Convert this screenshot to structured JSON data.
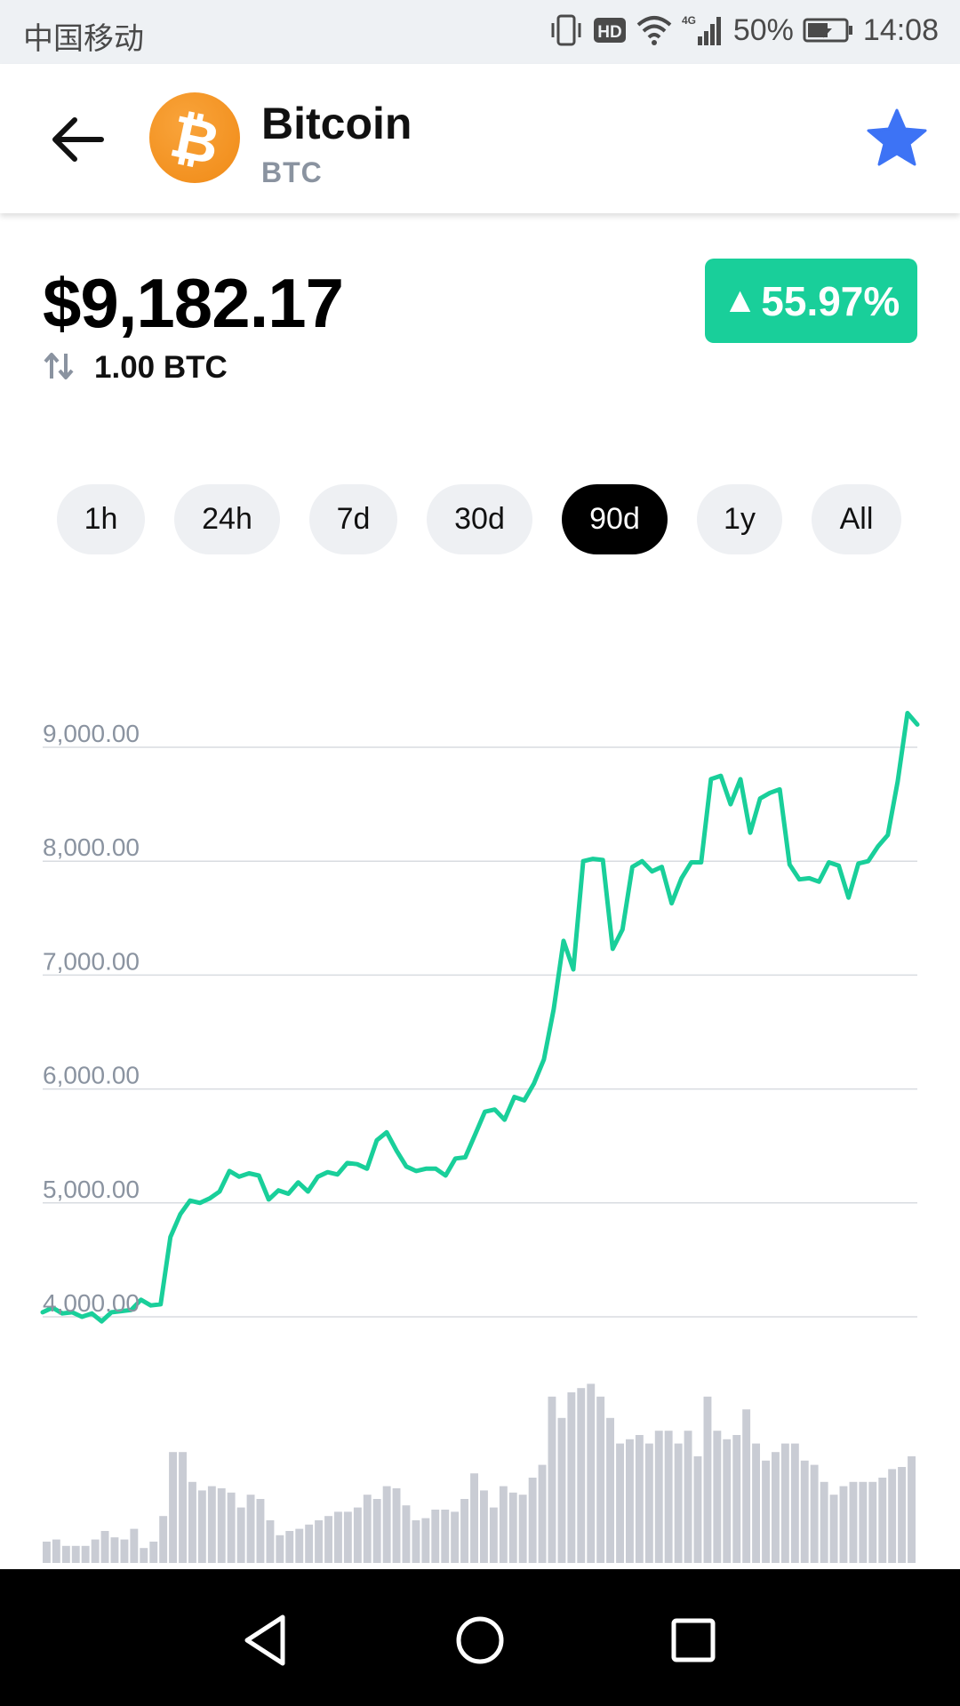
{
  "status_bar": {
    "carrier": "中国移动",
    "battery": "50%",
    "time": "14:08",
    "hd_label": "HD",
    "network": "4G",
    "icons": [
      "vibrate-icon",
      "hd-icon",
      "wifi-icon",
      "signal-icon",
      "battery-icon"
    ]
  },
  "header": {
    "coin_name": "Bitcoin",
    "coin_symbol": "BTC",
    "logo_glyph": "₿",
    "logo_color": "#f7931a",
    "fav_color": "#3d73f5"
  },
  "price": {
    "value": "$9,182.17",
    "amount": "1.00 BTC",
    "change": "55.97%",
    "change_color": "#19cf9a"
  },
  "ranges": [
    {
      "label": "1h",
      "active": false
    },
    {
      "label": "24h",
      "active": false
    },
    {
      "label": "7d",
      "active": false
    },
    {
      "label": "30d",
      "active": false
    },
    {
      "label": "90d",
      "active": true
    },
    {
      "label": "1y",
      "active": false
    },
    {
      "label": "All",
      "active": false
    }
  ],
  "chart_data": {
    "type": "line",
    "yticks": [
      "9,000.00",
      "8,000.00",
      "7,000.00",
      "6,000.00",
      "5,000.00",
      "4,000.00"
    ],
    "ytick_values": [
      9000,
      8000,
      7000,
      6000,
      5000,
      4000
    ],
    "grid": true,
    "line_color": "#19cf9a",
    "price_series": [
      4040,
      4080,
      4030,
      4040,
      4000,
      4030,
      3960,
      4040,
      4050,
      4060,
      4150,
      4100,
      4110,
      4700,
      4900,
      5020,
      5000,
      5040,
      5100,
      5280,
      5230,
      5260,
      5240,
      5030,
      5110,
      5080,
      5180,
      5100,
      5230,
      5270,
      5250,
      5350,
      5340,
      5300,
      5550,
      5620,
      5460,
      5320,
      5280,
      5300,
      5300,
      5240,
      5390,
      5400,
      5600,
      5800,
      5820,
      5730,
      5930,
      5900,
      6050,
      6260,
      6700,
      7300,
      7050,
      8000,
      8020,
      8010,
      7230,
      7400,
      7950,
      8000,
      7910,
      7950,
      7630,
      7850,
      7990,
      7990,
      8720,
      8750,
      8500,
      8720,
      8250,
      8550,
      8600,
      8630,
      7970,
      7840,
      7850,
      7820,
      7990,
      7960,
      7680,
      7980,
      8000,
      8130,
      8230,
      8700,
      9300,
      9200
    ],
    "volume_series": [
      0.5,
      0.55,
      0.4,
      0.4,
      0.4,
      0.55,
      0.75,
      0.6,
      0.55,
      0.8,
      0.35,
      0.5,
      1.1,
      2.6,
      2.6,
      1.9,
      1.7,
      1.8,
      1.75,
      1.65,
      1.3,
      1.6,
      1.5,
      1.0,
      0.65,
      0.75,
      0.8,
      0.9,
      1.0,
      1.1,
      1.2,
      1.2,
      1.3,
      1.6,
      1.5,
      1.8,
      1.75,
      1.35,
      1.0,
      1.05,
      1.25,
      1.25,
      1.2,
      1.5,
      2.1,
      1.7,
      1.3,
      1.8,
      1.65,
      1.6,
      2.0,
      2.3,
      3.9,
      3.4,
      4.0,
      4.1,
      4.2,
      3.9,
      3.4,
      2.8,
      2.9,
      3.0,
      2.8,
      3.1,
      3.1,
      2.8,
      3.1,
      2.5,
      3.9,
      3.1,
      2.9,
      3.0,
      3.6,
      2.8,
      2.4,
      2.6,
      2.8,
      2.8,
      2.4,
      2.3,
      1.9,
      1.6,
      1.8,
      1.9,
      1.9,
      1.9,
      2.0,
      2.2,
      2.25,
      2.5
    ]
  }
}
